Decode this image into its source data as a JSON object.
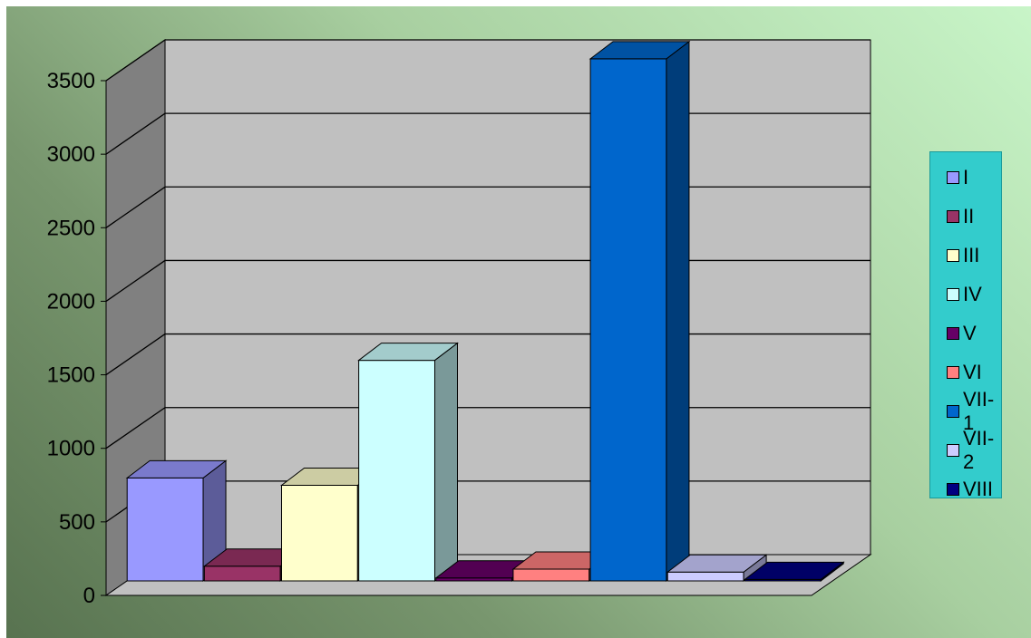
{
  "chart_data": {
    "type": "bar",
    "style": "3d-column",
    "categories": [
      "I",
      "II",
      "III",
      "IV",
      "V",
      "VI",
      "VII-1",
      "VII-2",
      "VIII"
    ],
    "values": [
      700,
      100,
      650,
      1500,
      20,
      80,
      3550,
      60,
      10
    ],
    "colors": [
      "#9999ff",
      "#993366",
      "#ffffcc",
      "#ccffff",
      "#660066",
      "#ff8080",
      "#0066cc",
      "#ccccff",
      "#000080"
    ],
    "title": "",
    "xlabel": "",
    "ylabel": "",
    "ylim": [
      0,
      3500
    ],
    "yticks": [
      "0",
      "500",
      "1000",
      "1500",
      "2000",
      "2500",
      "3000",
      "3500"
    ],
    "grid": true,
    "legend_position": "right"
  },
  "legend": {
    "items": [
      {
        "label": "I",
        "color": "#9999ff"
      },
      {
        "label": "II",
        "color": "#993366"
      },
      {
        "label": "III",
        "color": "#ffffcc"
      },
      {
        "label": "IV",
        "color": "#ccffff"
      },
      {
        "label": "V",
        "color": "#660066"
      },
      {
        "label": "VI",
        "color": "#ff8080"
      },
      {
        "label": "VII-1",
        "color": "#0066cc"
      },
      {
        "label": "VII-2",
        "color": "#ccccff"
      },
      {
        "label": "VIII",
        "color": "#000080"
      }
    ]
  },
  "colors": {
    "back_wall": "#c0c0c0",
    "side_wall": "#808080",
    "floor": "#c0c0c0"
  }
}
